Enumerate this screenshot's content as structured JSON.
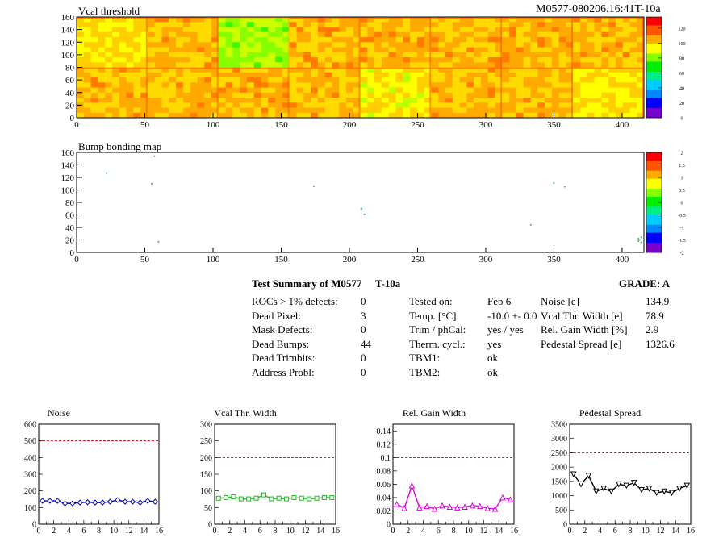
{
  "header": {
    "run_id": "M0577-080206.16:41T-10a"
  },
  "chart_data": [
    {
      "type": "heatmap",
      "title": "Vcal threshold",
      "xlim": [
        0,
        416
      ],
      "ylim": [
        0,
        160
      ],
      "x_ticks": [
        "0",
        "50",
        "100",
        "150",
        "200",
        "250",
        "300",
        "350",
        "400"
      ],
      "y_ticks": [
        "0",
        "20",
        "40",
        "60",
        "80",
        "100",
        "120",
        "140",
        "160"
      ],
      "z_ticks": [
        "0",
        "20",
        "40",
        "60",
        "80",
        "100",
        "120"
      ],
      "zlim": [
        0,
        135
      ],
      "roc_layout": {
        "cols": 8,
        "rows": 2,
        "col_width": 52,
        "row_height": 80
      },
      "roc_mean": [
        [
          100,
          100,
          102,
          100,
          96,
          100,
          100,
          98
        ],
        [
          98,
          100,
          84,
          102,
          102,
          100,
          102,
          100
        ]
      ]
    },
    {
      "type": "heatmap",
      "title": "Bump bonding map",
      "xlim": [
        0,
        416
      ],
      "ylim": [
        0,
        160
      ],
      "x_ticks": [
        "0",
        "50",
        "100",
        "150",
        "200",
        "250",
        "300",
        "350",
        "400"
      ],
      "y_ticks": [
        "0",
        "20",
        "40",
        "60",
        "80",
        "100",
        "120",
        "140",
        "160"
      ],
      "z_ticks": [
        "-2",
        "-1.5",
        "-1",
        "-0.5",
        "0",
        "0.5",
        "1",
        "1.5",
        "2"
      ],
      "zlim": [
        -2,
        2
      ],
      "points": [
        {
          "x": 22,
          "y": 127
        },
        {
          "x": 57,
          "y": 154
        },
        {
          "x": 55,
          "y": 110
        },
        {
          "x": 60,
          "y": 17
        },
        {
          "x": 174,
          "y": 106
        },
        {
          "x": 209,
          "y": 70
        },
        {
          "x": 211,
          "y": 61
        },
        {
          "x": 333,
          "y": 44
        },
        {
          "x": 350,
          "y": 111
        },
        {
          "x": 358,
          "y": 105
        },
        {
          "x": 412,
          "y": 18
        },
        {
          "x": 413,
          "y": 20
        },
        {
          "x": 414,
          "y": 16
        },
        {
          "x": 412,
          "y": 22
        },
        {
          "x": 414,
          "y": 24
        }
      ]
    },
    {
      "type": "line",
      "title": "Noise",
      "xlim": [
        0,
        16
      ],
      "ylim": [
        0,
        600
      ],
      "threshold": 500,
      "x_ticks": [
        "0",
        "2",
        "4",
        "6",
        "8",
        "10",
        "12",
        "14",
        "16"
      ],
      "y_ticks": [
        "0",
        "100",
        "200",
        "300",
        "400",
        "500",
        "600"
      ],
      "marker": "diamond",
      "color": "#0000aa",
      "x": [
        0.5,
        1.5,
        2.5,
        3.5,
        4.5,
        5.5,
        6.5,
        7.5,
        8.5,
        9.5,
        10.5,
        11.5,
        12.5,
        13.5,
        14.5,
        15.5
      ],
      "values": [
        140,
        140,
        140,
        125,
        125,
        130,
        132,
        130,
        130,
        135,
        145,
        135,
        135,
        130,
        140,
        135
      ]
    },
    {
      "type": "line",
      "title": "Vcal Thr. Width",
      "xlim": [
        0,
        16
      ],
      "ylim": [
        0,
        300
      ],
      "threshold": 200,
      "x_ticks": [
        "0",
        "2",
        "4",
        "6",
        "8",
        "10",
        "12",
        "14",
        "16"
      ],
      "y_ticks": [
        "0",
        "50",
        "100",
        "150",
        "200",
        "250",
        "300"
      ],
      "marker": "square",
      "color": "#22bb22",
      "x": [
        0.5,
        1.5,
        2.5,
        3.5,
        4.5,
        5.5,
        6.5,
        7.5,
        8.5,
        9.5,
        10.5,
        11.5,
        12.5,
        13.5,
        14.5,
        15.5
      ],
      "values": [
        78,
        80,
        82,
        76,
        76,
        78,
        88,
        76,
        78,
        76,
        80,
        78,
        76,
        78,
        80,
        80
      ]
    },
    {
      "type": "line",
      "title": "Rel. Gain Width",
      "xlim": [
        0,
        16
      ],
      "ylim": [
        0,
        0.15
      ],
      "threshold": 0.1,
      "x_ticks": [
        "0",
        "2",
        "4",
        "6",
        "8",
        "10",
        "12",
        "14",
        "16"
      ],
      "y_ticks": [
        "0",
        "0.02",
        "0.04",
        "0.06",
        "0.08",
        "0.1",
        "0.12",
        "0.14"
      ],
      "marker": "triangle",
      "color": "#dd00dd",
      "x": [
        0.5,
        1.5,
        2.5,
        3.5,
        4.5,
        5.5,
        6.5,
        7.5,
        8.5,
        9.5,
        10.5,
        11.5,
        12.5,
        13.5,
        14.5,
        15.5
      ],
      "values": [
        0.03,
        0.024,
        0.058,
        0.025,
        0.027,
        0.023,
        0.028,
        0.026,
        0.025,
        0.026,
        0.028,
        0.027,
        0.024,
        0.023,
        0.04,
        0.037
      ]
    },
    {
      "type": "line",
      "title": "Pedestal Spread",
      "xlim": [
        0,
        16
      ],
      "ylim": [
        0,
        3500
      ],
      "threshold": 2500,
      "x_ticks": [
        "0",
        "2",
        "4",
        "6",
        "8",
        "10",
        "12",
        "14",
        "16"
      ],
      "y_ticks": [
        "0",
        "500",
        "1000",
        "1500",
        "2000",
        "2500",
        "3000",
        "3500"
      ],
      "marker": "triangle-down",
      "color": "#000000",
      "x": [
        0.5,
        1.5,
        2.5,
        3.5,
        4.5,
        5.5,
        6.5,
        7.5,
        8.5,
        9.5,
        10.5,
        11.5,
        12.5,
        13.5,
        14.5,
        15.5
      ],
      "values": [
        1750,
        1400,
        1700,
        1150,
        1250,
        1150,
        1400,
        1350,
        1450,
        1200,
        1250,
        1100,
        1150,
        1100,
        1250,
        1350
      ]
    }
  ],
  "summary": {
    "title": "Test Summary of M0577",
    "temp_tag": "T-10a",
    "grade": "GRADE:  A",
    "defects": [
      {
        "label": "ROCs > 1% defects:",
        "value": "0"
      },
      {
        "label": "Dead Pixel:",
        "value": "3"
      },
      {
        "label": "Mask Defects:",
        "value": "0"
      },
      {
        "label": "Dead Bumps:",
        "value": "44"
      },
      {
        "label": "Dead Trimbits:",
        "value": "0"
      },
      {
        "label": "Address Probl:",
        "value": "0"
      }
    ],
    "conditions": [
      {
        "label": "Tested on:",
        "value": "Feb 6"
      },
      {
        "label": "Temp. [°C]:",
        "value": "-10.0 +- 0.0"
      },
      {
        "label": "Trim / phCal:",
        "value": "yes / yes"
      },
      {
        "label": "Therm. cycl.:",
        "value": "yes"
      },
      {
        "label": "TBM1:",
        "value": "ok"
      },
      {
        "label": "TBM2:",
        "value": "ok"
      }
    ],
    "results": [
      {
        "label": "Noise [e]",
        "value": "134.9"
      },
      {
        "label": "Vcal Thr. Width [e]",
        "value": "78.9"
      },
      {
        "label": "Rel. Gain Width [%]",
        "value": "2.9"
      },
      {
        "label": "Pedestal Spread [e]",
        "value": "1326.6"
      }
    ]
  },
  "colors": {
    "threshold_line": "#cc0000",
    "palette": [
      "#7700cc",
      "#0000ff",
      "#0088ff",
      "#00ccff",
      "#00ee88",
      "#00ee00",
      "#88ff00",
      "#ffff00",
      "#ffaa00",
      "#ff5500",
      "#ff0000"
    ]
  }
}
